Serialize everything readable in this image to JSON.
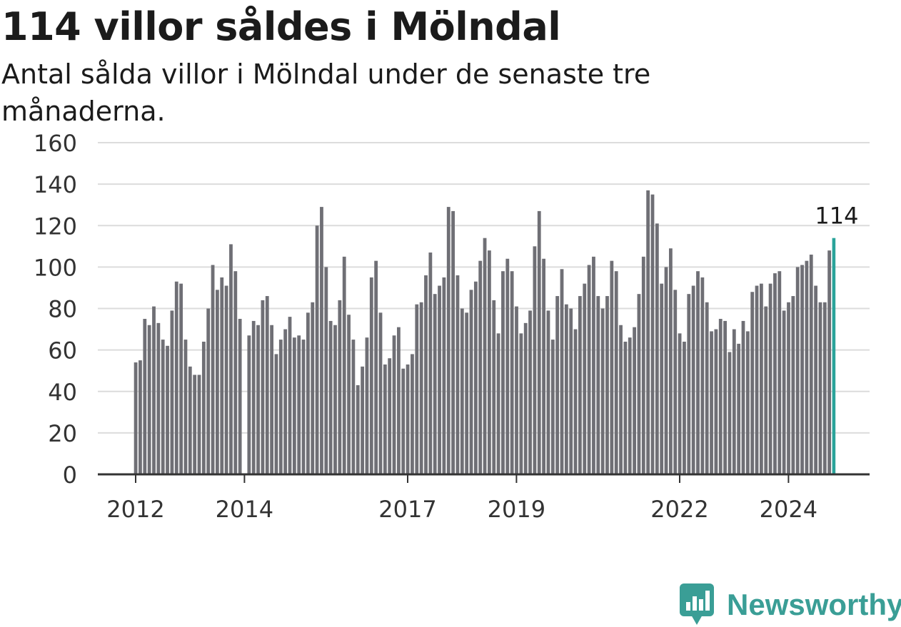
{
  "title": "114 villor såldes i Mölndal",
  "subtitle": "Antal sålda villor i Mölndal under de senaste tre månaderna.",
  "brand": {
    "name": "Newsworthy",
    "color": "#3a9e96",
    "icon": "newsworthy-logo-icon"
  },
  "colors": {
    "bar": "#6f6f75",
    "highlight": "#2aa39a",
    "grid": "#dcdcdc",
    "axis": "#333333"
  },
  "chart_data": {
    "type": "bar",
    "title": "114 villor såldes i Mölndal",
    "ylim": [
      0,
      160
    ],
    "yticks": [
      0,
      20,
      40,
      60,
      80,
      100,
      120,
      140,
      160
    ],
    "xticks": [
      "2012",
      "2014",
      "2017",
      "2019",
      "2022",
      "2024"
    ],
    "grid": true,
    "highlight_label": "114",
    "start": "2012-01",
    "values": [
      54,
      55,
      75,
      72,
      81,
      73,
      65,
      62,
      79,
      93,
      92,
      65,
      52,
      48,
      48,
      64,
      80,
      101,
      89,
      95,
      91,
      111,
      98,
      75,
      0,
      67,
      74,
      72,
      84,
      86,
      72,
      58,
      65,
      70,
      76,
      66,
      67,
      65,
      78,
      83,
      120,
      129,
      100,
      74,
      72,
      84,
      105,
      77,
      65,
      43,
      52,
      66,
      95,
      103,
      78,
      53,
      56,
      67,
      71,
      51,
      53,
      58,
      82,
      83,
      96,
      107,
      87,
      91,
      95,
      129,
      127,
      96,
      80,
      78,
      89,
      93,
      103,
      114,
      108,
      84,
      68,
      98,
      104,
      98,
      81,
      68,
      73,
      79,
      110,
      127,
      104,
      79,
      65,
      86,
      99,
      82,
      80,
      70,
      86,
      92,
      101,
      105,
      86,
      80,
      86,
      103,
      98,
      72,
      64,
      66,
      71,
      87,
      105,
      137,
      135,
      121,
      92,
      100,
      109,
      89,
      68,
      64,
      87,
      91,
      98,
      95,
      83,
      69,
      70,
      75,
      74,
      59,
      70,
      63,
      74,
      69,
      88,
      91,
      92,
      81,
      92,
      97,
      98,
      79,
      83,
      86,
      100,
      101,
      103,
      106,
      91,
      83,
      83,
      108,
      114
    ]
  }
}
